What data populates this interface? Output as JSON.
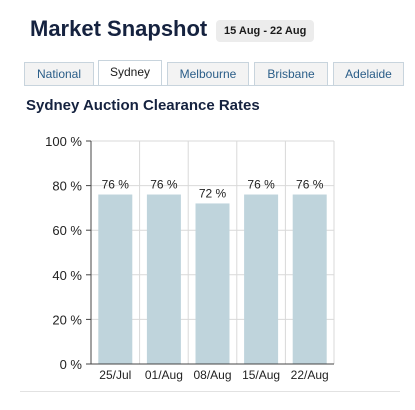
{
  "header": {
    "title": "Market Snapshot",
    "date_range": "15 Aug - 22 Aug"
  },
  "tabs": [
    {
      "label": "National",
      "active": false
    },
    {
      "label": "Sydney",
      "active": true
    },
    {
      "label": "Melbourne",
      "active": false
    },
    {
      "label": "Brisbane",
      "active": false
    },
    {
      "label": "Adelaide",
      "active": false
    }
  ],
  "chart_data": {
    "type": "bar",
    "title": "Sydney Auction Clearance Rates",
    "xlabel": "",
    "ylabel": "",
    "categories": [
      "25/Jul",
      "01/Aug",
      "08/Aug",
      "15/Aug",
      "22/Aug"
    ],
    "values": [
      76,
      76,
      72,
      76,
      76
    ],
    "data_labels": [
      "76 %",
      "76 %",
      "72 %",
      "76 %",
      "76 %"
    ],
    "ylim": [
      0,
      100
    ],
    "y_ticks": [
      0,
      20,
      40,
      60,
      80,
      100
    ],
    "y_tick_labels": [
      "0 %",
      "20 %",
      "40 %",
      "60 %",
      "80 %",
      "100 %"
    ],
    "grid": true,
    "legend": "none",
    "colors": {
      "bar": "#bfd4dc",
      "grid": "#d9d9d9",
      "axis": "#444444",
      "text": "#222222"
    }
  }
}
